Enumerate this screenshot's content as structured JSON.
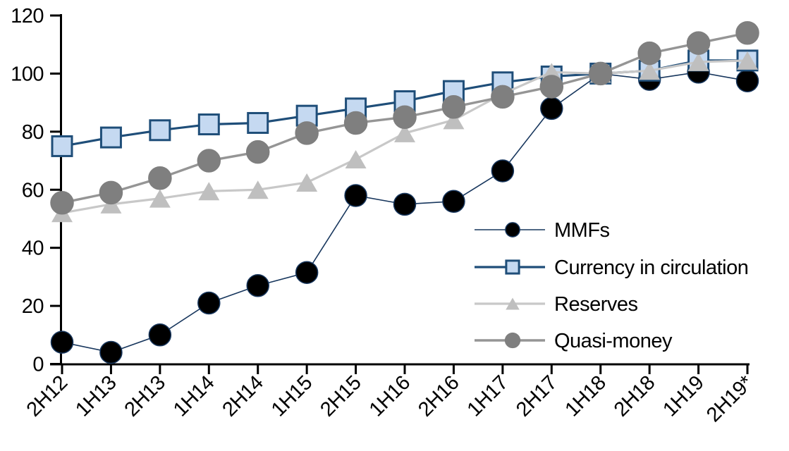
{
  "chart_data": {
    "type": "line",
    "title": "",
    "categories": [
      "2H12",
      "1H13",
      "2H13",
      "1H14",
      "2H14",
      "1H15",
      "2H15",
      "1H16",
      "2H16",
      "1H17",
      "2H17",
      "1H18",
      "2H18",
      "1H19",
      "2H19*"
    ],
    "y_axis": {
      "min": 0,
      "max": 120,
      "step": 20,
      "tick_labels": [
        "0",
        "20",
        "40",
        "60",
        "80",
        "100",
        "120"
      ]
    },
    "x_axis": {
      "label_rotation_deg": 45
    },
    "grid": "off",
    "legend_position": "middle-right",
    "series": [
      {
        "name": "MMFs",
        "marker": "circle",
        "marker_fill": "#000000",
        "marker_stroke": "#17365d",
        "line_color": "#17365d",
        "line_width": 1.6,
        "values": [
          7.5,
          4,
          10,
          21,
          27,
          31.5,
          58,
          55,
          56,
          66.5,
          88,
          100,
          98,
          100.5,
          97.5
        ]
      },
      {
        "name": "Currency in circulation",
        "marker": "square",
        "marker_fill": "#c5d9f1",
        "marker_stroke": "#1f4e79",
        "line_color": "#1f4e79",
        "line_width": 3.2,
        "values": [
          75,
          78,
          80.5,
          82.5,
          83,
          85.5,
          88,
          90.5,
          94,
          97,
          99,
          100,
          101,
          104.5,
          104.5
        ]
      },
      {
        "name": "Reserves",
        "marker": "triangle",
        "marker_fill": "#bfbfbf",
        "marker_stroke": "#bfbfbf",
        "line_color": "#c8c8c8",
        "line_width": 3.2,
        "values": [
          52,
          55,
          57,
          59.5,
          60,
          62.5,
          70.5,
          79.5,
          84,
          93,
          100.5,
          100,
          101,
          104,
          104.5
        ]
      },
      {
        "name": "Quasi-money",
        "marker": "circle",
        "marker_fill": "#7f7f7f",
        "marker_stroke": "#7f7f7f",
        "line_color": "#959595",
        "line_width": 3.4,
        "values": [
          55.5,
          59,
          64,
          70,
          73,
          79.5,
          83,
          85,
          88.5,
          92,
          95.5,
          100,
          107,
          110.5,
          114
        ]
      }
    ]
  }
}
